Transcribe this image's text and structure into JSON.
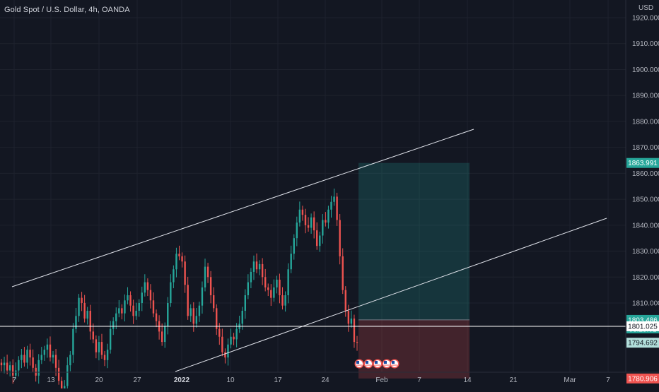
{
  "header": {
    "symbol_title": "Gold Spot / U.S. Dollar, 4h, OANDA",
    "currency": "USD"
  },
  "colors": {
    "background": "#131722",
    "grid": "#1e222d",
    "up_candle": "#26a69a",
    "down_candle": "#ef5350",
    "trendline": "#e0e3eb",
    "profit_zone": "#26a69a",
    "loss_zone": "#ef5350",
    "axis_text": "#b2b5be"
  },
  "price_axis": {
    "ticks": [
      "1920.000",
      "1910.000",
      "1900.000",
      "1890.000",
      "1880.000",
      "1870.000",
      "1860.000",
      "1850.000",
      "1840.000",
      "1830.000",
      "1820.000",
      "1810.000"
    ],
    "tick_values": [
      1920,
      1910,
      1900,
      1890,
      1880,
      1870,
      1860,
      1850,
      1840,
      1830,
      1820,
      1810
    ]
  },
  "time_axis": {
    "labels": [
      "7",
      "13",
      "20",
      "27",
      "2022",
      "10",
      "17",
      "24",
      "Feb",
      "7",
      "14",
      "21",
      "Mar",
      "7"
    ],
    "bold": [
      "2022"
    ]
  },
  "price_labels": [
    {
      "text": "1863.991",
      "value": 1863.991,
      "kind": "target",
      "color": "#26a69a",
      "text_color": "#ffffff"
    },
    {
      "text": "1803.486",
      "value": 1803.486,
      "kind": "entry",
      "color": "#26a69a",
      "text_color": "#ffffff"
    },
    {
      "text": "03:25:01",
      "value": 1803.486,
      "kind": "countdown",
      "color": "#26a69a",
      "text_color": "#ffffff"
    },
    {
      "text": "1801.025",
      "value": 1801.025,
      "kind": "horizontal-line",
      "color": "#ffffff",
      "text_color": "#131722"
    },
    {
      "text": "1794.692",
      "value": 1794.692,
      "kind": "current",
      "color": "#b2dfdb",
      "text_color": "#131722"
    },
    {
      "text": "1780.906",
      "value": 1780.906,
      "kind": "stop",
      "color": "#ef5350",
      "text_color": "#ffffff"
    }
  ],
  "position_tool": {
    "entry": 1803.486,
    "target": 1863.991,
    "stop": 1780.906
  },
  "chart_data": {
    "type": "candlestick",
    "title": "Gold Spot / U.S. Dollar, 4h, OANDA",
    "ylim": [
      1775,
      1925
    ],
    "closes": [
      1786,
      1787,
      1784,
      1786,
      1782,
      1784,
      1788,
      1790,
      1787,
      1792,
      1789,
      1785,
      1782,
      1788,
      1790,
      1792,
      1794,
      1789,
      1790,
      1785,
      1780,
      1775,
      1778,
      1786,
      1790,
      1800,
      1805,
      1812,
      1810,
      1804,
      1807,
      1799,
      1796,
      1791,
      1795,
      1790,
      1788,
      1792,
      1800,
      1803,
      1806,
      1808,
      1806,
      1811,
      1813,
      1809,
      1805,
      1807,
      1810,
      1814,
      1818,
      1815,
      1811,
      1806,
      1803,
      1799,
      1795,
      1801,
      1810,
      1818,
      1823,
      1829,
      1828,
      1826,
      1817,
      1805,
      1808,
      1802,
      1805,
      1809,
      1816,
      1824,
      1820,
      1813,
      1808,
      1800,
      1797,
      1791,
      1789,
      1794,
      1797,
      1796,
      1800,
      1802,
      1807,
      1813,
      1818,
      1822,
      1826,
      1823,
      1825,
      1820,
      1816,
      1815,
      1812,
      1816,
      1819,
      1813,
      1809,
      1813,
      1823,
      1829,
      1835,
      1841,
      1846,
      1844,
      1840,
      1839,
      1843,
      1838,
      1832,
      1836,
      1842,
      1841,
      1846,
      1849,
      1851,
      1842,
      1828,
      1815,
      1807,
      1802,
      1804,
      1795,
      1794.692
    ],
    "trendlines": [
      {
        "name": "channel-upper"
      },
      {
        "name": "channel-lower"
      }
    ],
    "horizontal_lines": [
      1801.025
    ]
  }
}
